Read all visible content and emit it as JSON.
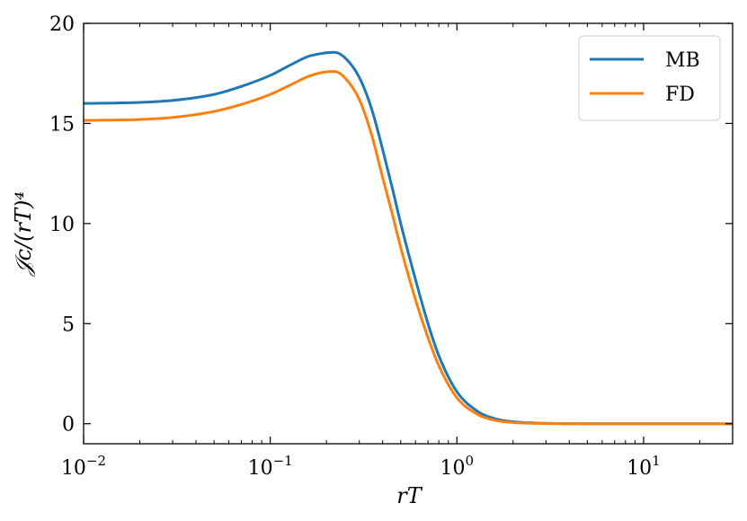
{
  "chart_data": {
    "type": "line",
    "xscale": "log",
    "xlim": [
      0.01,
      30
    ],
    "ylim": [
      -1,
      20
    ],
    "xlabel": "rT",
    "ylabel": "𝒥c/(rT)⁴",
    "x_ticks": [
      {
        "value": 0.01,
        "base": "10",
        "exp": "−2"
      },
      {
        "value": 0.1,
        "base": "10",
        "exp": "−1"
      },
      {
        "value": 1,
        "base": "10",
        "exp": "0"
      },
      {
        "value": 10,
        "base": "10",
        "exp": "1"
      }
    ],
    "y_ticks": [
      {
        "value": 0,
        "label": "0"
      },
      {
        "value": 5,
        "label": "5"
      },
      {
        "value": 10,
        "label": "10"
      },
      {
        "value": 15,
        "label": "15"
      },
      {
        "value": 20,
        "label": "20"
      }
    ],
    "legend_position": "top-right",
    "grid": false,
    "series": [
      {
        "name": "MB",
        "color": "#1f77b4",
        "x": [
          0.01,
          0.02,
          0.03,
          0.05,
          0.07,
          0.1,
          0.13,
          0.16,
          0.19,
          0.22,
          0.25,
          0.3,
          0.35,
          0.4,
          0.45,
          0.5,
          0.6,
          0.7,
          0.8,
          1.0,
          1.3,
          1.6,
          2.0,
          3.0,
          5.0,
          10,
          30
        ],
        "y": [
          16.0,
          16.05,
          16.15,
          16.45,
          16.85,
          17.4,
          17.95,
          18.35,
          18.5,
          18.55,
          18.3,
          17.3,
          15.7,
          13.7,
          11.8,
          10.0,
          7.2,
          5.0,
          3.4,
          1.6,
          0.6,
          0.25,
          0.1,
          0.02,
          0.0,
          0.0,
          0.0
        ]
      },
      {
        "name": "FD",
        "color": "#ff7f0e",
        "x": [
          0.01,
          0.02,
          0.03,
          0.05,
          0.07,
          0.1,
          0.13,
          0.16,
          0.19,
          0.22,
          0.25,
          0.3,
          0.35,
          0.4,
          0.45,
          0.5,
          0.6,
          0.7,
          0.8,
          1.0,
          1.3,
          1.6,
          2.0,
          3.0,
          5.0,
          10,
          30
        ],
        "y": [
          15.15,
          15.2,
          15.3,
          15.6,
          15.95,
          16.45,
          16.95,
          17.35,
          17.55,
          17.6,
          17.3,
          16.2,
          14.4,
          12.3,
          10.5,
          8.8,
          6.2,
          4.3,
          2.9,
          1.3,
          0.45,
          0.17,
          0.06,
          0.01,
          0.0,
          0.0,
          0.0
        ]
      }
    ]
  }
}
